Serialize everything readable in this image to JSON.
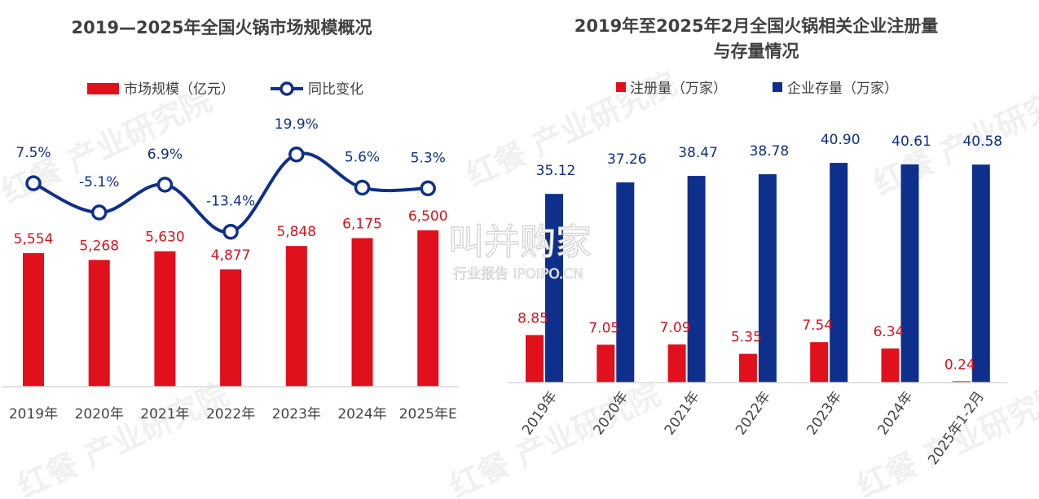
{
  "colors": {
    "red": "#e0101c",
    "blue": "#0f2f8c",
    "title": "#404040",
    "axis": "#444444",
    "grid": "#d9d9d9"
  },
  "watermarks": {
    "center_brand": "叫并购家",
    "center_sub": "行业报告 IPOIPO.CN",
    "diagonal": "红餐 产业研究院"
  },
  "chart_data": [
    {
      "type": "bar+line",
      "title": "2019—2025年全国火锅市场规模概况",
      "categories": [
        "2019年",
        "2020年",
        "2021年",
        "2022年",
        "2023年",
        "2024年",
        "2025年E"
      ],
      "series": [
        {
          "name": "市场规模（亿元）",
          "type": "bar",
          "color": "#e0101c",
          "values": [
            5554,
            5268,
            5630,
            4877,
            5848,
            6175,
            6500
          ],
          "labels": [
            "5,554",
            "5,268",
            "5,630",
            "4,877",
            "5,848",
            "6,175",
            "6,500"
          ]
        },
        {
          "name": "同比变化",
          "type": "line",
          "color": "#0f2f8c",
          "values": [
            7.5,
            -5.1,
            6.9,
            -13.4,
            19.9,
            5.6,
            5.3
          ],
          "labels": [
            "7.5%",
            "-5.1%",
            "6.9%",
            "-13.4%",
            "19.9%",
            "5.6%",
            "5.3%"
          ]
        }
      ],
      "legend": "top-center",
      "grid": false
    },
    {
      "type": "bar",
      "title": "2019年至2025年2月全国火锅相关企业注册量",
      "title_line2": "与存量情况",
      "categories": [
        "2019年",
        "2020年",
        "2021年",
        "2022年",
        "2023年",
        "2024年",
        "2025年1-2月"
      ],
      "series": [
        {
          "name": "注册量（万家）",
          "color": "#e0101c",
          "values": [
            8.85,
            7.05,
            7.09,
            5.35,
            7.54,
            6.34,
            0.24
          ],
          "labels": [
            "8.85",
            "7.05",
            "7.09",
            "5.35",
            "7.54",
            "6.34",
            "0.24"
          ]
        },
        {
          "name": "企业存量（万家）",
          "color": "#0f2f8c",
          "values": [
            35.12,
            37.26,
            38.47,
            38.78,
            40.9,
            40.61,
            40.58
          ],
          "labels": [
            "35.12",
            "37.26",
            "38.47",
            "38.78",
            "40.90",
            "40.61",
            "40.58"
          ]
        }
      ],
      "legend": "top-center",
      "grid": false,
      "xtick_rotation": "rotated"
    }
  ]
}
